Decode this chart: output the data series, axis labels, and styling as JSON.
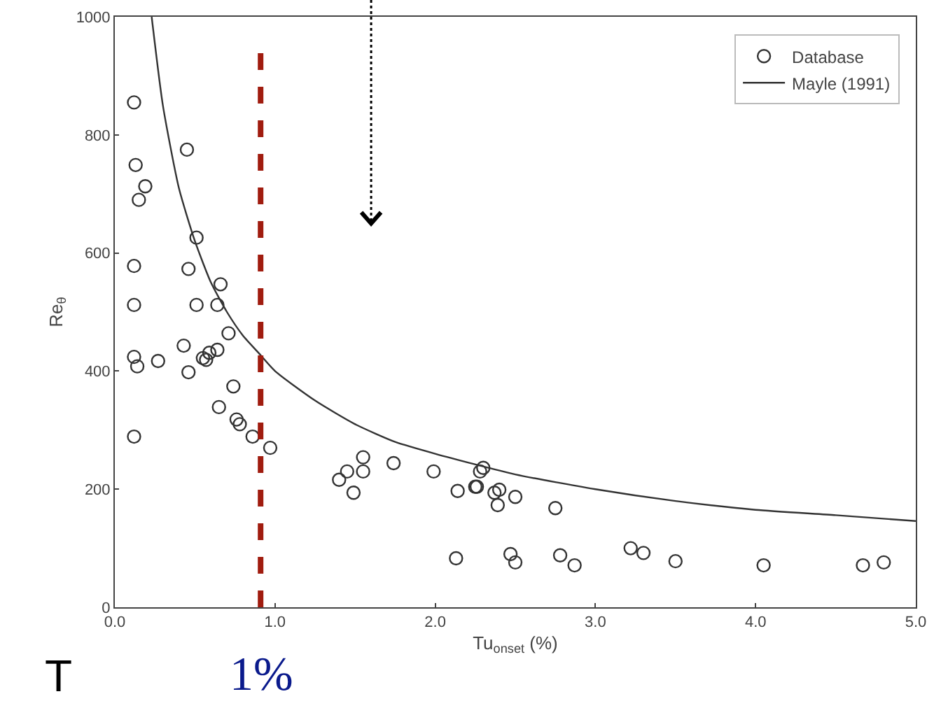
{
  "chart_data": {
    "type": "scatter",
    "xlabel": "Tu$_{onset}$ (%)",
    "ylabel": "Re$_{θ}$",
    "xlim": [
      0,
      5
    ],
    "ylim": [
      0,
      1000
    ],
    "xticks": [
      {
        "value": 0,
        "label": "0.0"
      },
      {
        "value": 1,
        "label": "1.0"
      },
      {
        "value": 2,
        "label": "2.0"
      },
      {
        "value": 3,
        "label": "3.0"
      },
      {
        "value": 4,
        "label": "4.0"
      },
      {
        "value": 5,
        "label": "5.0"
      }
    ],
    "yticks": [
      0,
      200,
      400,
      600,
      800,
      1000
    ],
    "grid": false,
    "legend": "top right",
    "marker": "circle",
    "series": [
      {
        "name": "Database",
        "type": "scatter",
        "color": "#333333",
        "x": [
          0.12,
          0.13,
          0.15,
          0.19,
          0.12,
          0.12,
          0.12,
          0.14,
          0.27,
          0.45,
          0.51,
          0.46,
          0.66,
          0.51,
          0.64,
          0.71,
          0.64,
          0.43,
          0.46,
          0.55,
          0.59,
          0.57,
          0.74,
          0.65,
          0.76,
          0.78,
          0.86,
          0.97,
          0.12,
          1.4,
          1.45,
          1.55,
          1.55,
          1.49,
          1.74,
          1.99,
          2.14,
          2.26,
          2.28,
          2.3,
          2.37,
          2.39,
          2.5,
          2.25,
          2.4,
          2.75,
          2.13,
          2.47,
          2.5,
          2.78,
          2.87,
          3.22,
          3.3,
          3.5,
          4.05,
          4.67,
          4.8
        ],
        "values": [
          855,
          749,
          690,
          713,
          578,
          512,
          424,
          408,
          417,
          775,
          626,
          573,
          547,
          512,
          512,
          464,
          436,
          443,
          398,
          422,
          431,
          419,
          374,
          339,
          318,
          310,
          289,
          270,
          289,
          216,
          230,
          254,
          230,
          194,
          244,
          230,
          197,
          204,
          230,
          236,
          194,
          173,
          187,
          204,
          199,
          168,
          83,
          90,
          76,
          88,
          71,
          100,
          92,
          78,
          71,
          71,
          76
        ]
      },
      {
        "name": "Mayle (1991)",
        "type": "line",
        "color": "#333333",
        "marker": "none",
        "line_style": "solid",
        "x": [
          0.23,
          0.3,
          0.4,
          0.5,
          0.6,
          0.7,
          0.8,
          0.9,
          1.0,
          1.25,
          1.5,
          1.75,
          2.0,
          2.5,
          3.0,
          3.5,
          4.0,
          4.5,
          5.0
        ],
        "values": [
          1000,
          850,
          710,
          620,
          550,
          500,
          460,
          430,
          400,
          350,
          310,
          280,
          260,
          225,
          200,
          180,
          165,
          156,
          146
        ]
      }
    ],
    "ref_lines": [
      {
        "axis": "x",
        "value": 0.91,
        "label": "1%",
        "color": "#a01c0f",
        "line_style": "dashed"
      }
    ],
    "annotations": [
      "T"
    ]
  }
}
